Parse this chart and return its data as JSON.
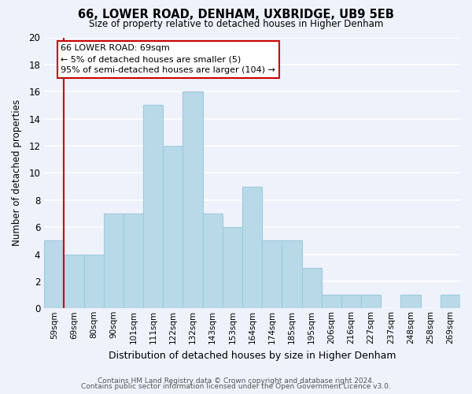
{
  "title": "66, LOWER ROAD, DENHAM, UXBRIDGE, UB9 5EB",
  "subtitle": "Size of property relative to detached houses in Higher Denham",
  "xlabel": "Distribution of detached houses by size in Higher Denham",
  "ylabel": "Number of detached properties",
  "bin_labels": [
    "59sqm",
    "69sqm",
    "80sqm",
    "90sqm",
    "101sqm",
    "111sqm",
    "122sqm",
    "132sqm",
    "143sqm",
    "153sqm",
    "164sqm",
    "174sqm",
    "185sqm",
    "195sqm",
    "206sqm",
    "216sqm",
    "227sqm",
    "237sqm",
    "248sqm",
    "258sqm",
    "269sqm"
  ],
  "bar_heights": [
    5,
    4,
    4,
    7,
    7,
    15,
    12,
    16,
    7,
    6,
    9,
    5,
    5,
    3,
    1,
    1,
    1,
    0,
    1,
    0,
    1
  ],
  "bar_color": "#b8d9e8",
  "bar_edge_color": "#a0c8dd",
  "highlight_bar_index": 1,
  "highlight_line_color": "#cc0000",
  "ylim": [
    0,
    20
  ],
  "yticks": [
    0,
    2,
    4,
    6,
    8,
    10,
    12,
    14,
    16,
    18,
    20
  ],
  "annotation_title": "66 LOWER ROAD: 69sqm",
  "annotation_line1": "← 5% of detached houses are smaller (5)",
  "annotation_line2": "95% of semi-detached houses are larger (104) →",
  "annotation_box_color": "#ffffff",
  "annotation_box_edge_color": "#cc0000",
  "footer_line1": "Contains HM Land Registry data © Crown copyright and database right 2024.",
  "footer_line2": "Contains public sector information licensed under the Open Government Licence v3.0.",
  "background_color": "#eef2fb",
  "grid_color": "#ffffff"
}
